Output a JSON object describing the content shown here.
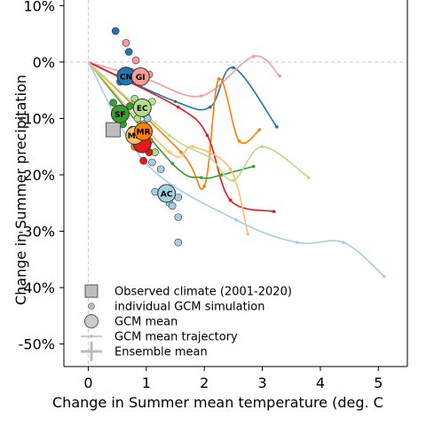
{
  "chart_data": {
    "type": "scatter",
    "xlabel": "Change in Summer mean temperature (deg. C",
    "ylabel": "Change in Summer precipitation",
    "xlim": [
      -0.42,
      5.5
    ],
    "ylim": [
      -54,
      11
    ],
    "x_ticks": [
      0,
      1,
      2,
      3,
      4,
      5
    ],
    "y_ticks": [
      10,
      0,
      -10,
      -20,
      -30,
      -40,
      -50
    ],
    "y_tick_labels": [
      "10%",
      "0%",
      "-10%",
      "-20%",
      "-30%",
      "-40%",
      "-50%"
    ],
    "reference_lines": {
      "x": 0,
      "y": 0,
      "style": "dashed"
    },
    "legend": {
      "position": "bottom-left",
      "items": [
        {
          "label": "Observed climate (2001-2020)",
          "symbol": "square"
        },
        {
          "label": "individual GCM simulation",
          "symbol": "small-circle"
        },
        {
          "label": "GCM mean",
          "symbol": "large-circle"
        },
        {
          "label": "GCM mean trajectory",
          "symbol": "line"
        },
        {
          "label": "Ensemble mean",
          "symbol": "cross"
        }
      ]
    },
    "observed": {
      "x": 0.43,
      "y": -12
    },
    "trajectories": [
      {
        "color": "#1f78b4",
        "points": [
          [
            0,
            0
          ],
          [
            1.5,
            -7
          ],
          [
            2.1,
            -8
          ],
          [
            2.5,
            -1
          ],
          [
            3.25,
            -11.5
          ]
        ]
      },
      {
        "color": "#fb9a99",
        "points": [
          [
            0,
            0
          ],
          [
            1.0,
            -3
          ],
          [
            1.95,
            -6
          ],
          [
            2.85,
            1
          ],
          [
            3.3,
            -2.5
          ]
        ]
      },
      {
        "color": "#ff7f00",
        "points": [
          [
            0,
            0
          ],
          [
            1.6,
            -16
          ],
          [
            2.0,
            -22
          ],
          [
            2.25,
            -3
          ],
          [
            2.6,
            -14
          ],
          [
            2.95,
            -12
          ]
        ]
      },
      {
        "color": "#e31a1c",
        "points": [
          [
            0,
            0
          ],
          [
            1.55,
            -8
          ],
          [
            2.05,
            -13
          ],
          [
            2.45,
            -24.5
          ],
          [
            3.2,
            -26.5
          ]
        ]
      },
      {
        "color": "#33a02c",
        "points": [
          [
            0,
            0
          ],
          [
            1.45,
            -18
          ],
          [
            1.95,
            -20.5
          ],
          [
            2.3,
            -20
          ],
          [
            2.85,
            -18.5
          ]
        ]
      },
      {
        "color": "#b2df8a",
        "points": [
          [
            0,
            0
          ],
          [
            1.4,
            -13
          ],
          [
            2.1,
            -17
          ],
          [
            2.5,
            -21
          ],
          [
            3.0,
            -15
          ],
          [
            3.8,
            -20.5
          ]
        ]
      },
      {
        "color": "#fdbf6f",
        "points": [
          [
            0,
            0
          ],
          [
            1.4,
            -16
          ],
          [
            1.8,
            -15
          ],
          [
            2.45,
            -19
          ],
          [
            2.75,
            -30.5
          ]
        ]
      },
      {
        "color": "#a6cee3",
        "points": [
          [
            0,
            0
          ],
          [
            1.0,
            -18
          ],
          [
            2.55,
            -28
          ],
          [
            3.6,
            -32
          ],
          [
            4.4,
            -32
          ],
          [
            5.1,
            -38
          ]
        ]
      }
    ],
    "individual_simulations": [
      {
        "color": "#1f78b4",
        "points": [
          [
            0.47,
            5.5
          ],
          [
            0.7,
            1.8
          ],
          [
            0.65,
            -1.5
          ],
          [
            0.55,
            -3.5
          ]
        ]
      },
      {
        "color": "#fb9a99",
        "points": [
          [
            0.65,
            3.4
          ],
          [
            0.82,
            0.3
          ],
          [
            0.75,
            -1.8
          ],
          [
            1.05,
            -2.2
          ]
        ]
      },
      {
        "color": "#33a02c",
        "points": [
          [
            0.43,
            -7.2
          ],
          [
            0.58,
            -9.5
          ],
          [
            0.47,
            -12.5
          ],
          [
            0.72,
            -7.8
          ],
          [
            0.6,
            -11
          ]
        ]
      },
      {
        "color": "#b2df8a",
        "points": [
          [
            0.85,
            -10
          ],
          [
            1.0,
            -9.5
          ],
          [
            1.15,
            -16
          ],
          [
            1.1,
            -7
          ],
          [
            0.8,
            -6.5
          ]
        ]
      },
      {
        "color": "#fdbf6f",
        "points": [
          [
            0.75,
            -12
          ],
          [
            0.85,
            -14.5
          ],
          [
            0.95,
            -11
          ]
        ]
      },
      {
        "color": "#ff7f00",
        "points": [
          [
            0.98,
            -12.5
          ],
          [
            0.8,
            -15
          ],
          [
            1.05,
            -14
          ]
        ]
      },
      {
        "color": "#e31a1c",
        "points": [
          [
            0.95,
            -17.5
          ],
          [
            1.05,
            -16
          ],
          [
            0.9,
            -14
          ]
        ]
      },
      {
        "color": "#a6cee3",
        "points": [
          [
            1.1,
            -17.8
          ],
          [
            1.25,
            -19
          ],
          [
            1.15,
            -23
          ],
          [
            1.4,
            -25
          ],
          [
            1.45,
            -25.5
          ],
          [
            1.55,
            -24
          ],
          [
            1.55,
            -27.5
          ],
          [
            1.55,
            -32
          ],
          [
            1.02,
            -10
          ]
        ]
      }
    ],
    "gcm_means": [
      {
        "label": "CN",
        "x": 0.65,
        "y": -2.5,
        "color": "#1f78b4"
      },
      {
        "label": "GI",
        "x": 0.9,
        "y": -2.6,
        "color": "#fb9a99"
      },
      {
        "label": "SF",
        "x": 0.55,
        "y": -9.2,
        "color": "#33a02c"
      },
      {
        "label": "EC",
        "x": 0.93,
        "y": -8.1,
        "color": "#b2df8a"
      },
      {
        "label": "",
        "x": 0.93,
        "y": -14.5,
        "color": "#e31a1c"
      },
      {
        "label": "MA",
        "x": 0.8,
        "y": -13,
        "color": "#fdbf6f"
      },
      {
        "label": "MR",
        "x": 0.95,
        "y": -12.3,
        "color": "#ff7f00"
      },
      {
        "label": "AC",
        "x": 1.35,
        "y": -23.3,
        "color": "#a6cee3"
      }
    ]
  }
}
